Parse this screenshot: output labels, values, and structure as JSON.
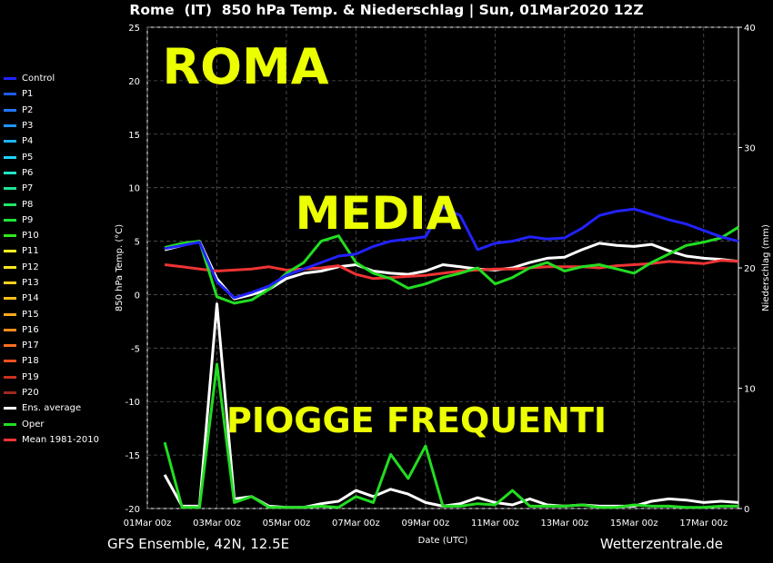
{
  "header": {
    "title": "Rome  (IT)  850 hPa Temp. & Niederschlag | Sun, 01Mar2020 12Z"
  },
  "footer": {
    "left": "GFS Ensemble, 42N, 12.5E",
    "right": "Wetterzentrale.de"
  },
  "overlay_text": [
    "ROMA",
    "MEDIA",
    "PIOGGE FREQUENTI"
  ],
  "colors": {
    "background": "#000000",
    "overlay": "#ecff00",
    "ens_average": "#ffffff",
    "oper": "#22dd22",
    "mean_clim": "#ee3333",
    "control": "#2222ff"
  },
  "legend": [
    {
      "label": "Control",
      "color": "#2222ff"
    },
    {
      "label": "P1",
      "color": "#1e5aff"
    },
    {
      "label": "P2",
      "color": "#1e78ff"
    },
    {
      "label": "P3",
      "color": "#1e96ff"
    },
    {
      "label": "P4",
      "color": "#1eb4ff"
    },
    {
      "label": "P5",
      "color": "#1ed2ff"
    },
    {
      "label": "P6",
      "color": "#1ee6c8"
    },
    {
      "label": "P7",
      "color": "#1ee696"
    },
    {
      "label": "P8",
      "color": "#1ee664"
    },
    {
      "label": "P9",
      "color": "#1ee632"
    },
    {
      "label": "P10",
      "color": "#32e61e"
    },
    {
      "label": "P11",
      "color": "#ffff1e"
    },
    {
      "label": "P12",
      "color": "#ffe61e"
    },
    {
      "label": "P13",
      "color": "#ffd21e"
    },
    {
      "label": "P14",
      "color": "#ffbe1e"
    },
    {
      "label": "P15",
      "color": "#ffaa1e"
    },
    {
      "label": "P16",
      "color": "#ff8c1e"
    },
    {
      "label": "P17",
      "color": "#ff6e1e"
    },
    {
      "label": "P18",
      "color": "#f0501e"
    },
    {
      "label": "P19",
      "color": "#c8321e"
    },
    {
      "label": "P20",
      "color": "#a0281e"
    },
    {
      "label": "Ens. average",
      "color": "#ffffff"
    },
    {
      "label": "Oper",
      "color": "#22dd22"
    },
    {
      "label": "Mean 1981-2010",
      "color": "#ee3333"
    }
  ],
  "chart_data": {
    "type": "line",
    "title": "Rome  (IT)  850 hPa Temp. & Niederschlag | Sun, 01Mar2020 12Z",
    "xlabel": "Date (UTC)",
    "ylabel": "850 hPa Temp. (°C)",
    "y2label": "Niederschlag (mm)",
    "x_ticks": [
      "01Mar 00z",
      "03Mar 00z",
      "05Mar 00z",
      "07Mar 00z",
      "09Mar 00z",
      "11Mar 00z",
      "13Mar 00z",
      "15Mar 00z",
      "17Mar 00z"
    ],
    "x_unit": "days since 01Mar 00z",
    "xlim": [
      0,
      17
    ],
    "ylim": [
      -20,
      25
    ],
    "yticks": [
      -20,
      -15,
      -10,
      -5,
      0,
      5,
      10,
      15,
      20,
      25
    ],
    "y2lim": [
      0,
      40
    ],
    "y2ticks": [
      0,
      10,
      20,
      30,
      40
    ],
    "grid": true,
    "legend_position": "left",
    "series": [
      {
        "name": "Ens. average",
        "axis": "temp",
        "color": "#ffffff",
        "width": 3,
        "x": [
          0.5,
          1,
          1.5,
          2,
          2.5,
          3,
          3.5,
          4,
          4.5,
          5,
          5.5,
          6,
          6.5,
          7,
          7.5,
          8,
          8.5,
          9,
          9.5,
          10,
          10.5,
          11,
          11.5,
          12,
          12.5,
          13,
          13.5,
          14,
          14.5,
          15,
          15.5,
          16,
          16.5,
          17
        ],
        "values": [
          4.2,
          4.6,
          5.0,
          1.5,
          -0.4,
          0.0,
          0.5,
          1.5,
          2.0,
          2.2,
          2.6,
          2.8,
          2.2,
          2.0,
          1.9,
          2.2,
          2.8,
          2.6,
          2.4,
          2.3,
          2.5,
          3.0,
          3.4,
          3.5,
          4.2,
          4.8,
          4.6,
          4.5,
          4.7,
          4.1,
          3.6,
          3.4,
          3.3,
          3.1
        ]
      },
      {
        "name": "Mean 1981-2010",
        "axis": "temp",
        "color": "#ee3333",
        "width": 3,
        "x": [
          0.5,
          1,
          1.5,
          2,
          2.5,
          3,
          3.5,
          4,
          4.5,
          5,
          5.5,
          6,
          6.5,
          7,
          7.5,
          8,
          8.5,
          9,
          9.5,
          10,
          10.5,
          11,
          11.5,
          12,
          12.5,
          13,
          13.5,
          14,
          14.5,
          15,
          15.5,
          16,
          16.5,
          17
        ],
        "values": [
          2.8,
          2.6,
          2.4,
          2.2,
          2.3,
          2.4,
          2.6,
          2.3,
          2.4,
          2.5,
          2.7,
          1.9,
          1.5,
          1.6,
          1.7,
          1.8,
          2.0,
          2.2,
          2.3,
          2.4,
          2.4,
          2.5,
          2.6,
          2.6,
          2.6,
          2.5,
          2.7,
          2.8,
          2.9,
          3.1,
          3.0,
          2.9,
          3.2,
          3.1
        ]
      },
      {
        "name": "Oper",
        "axis": "temp",
        "color": "#22dd22",
        "width": 3,
        "x": [
          0.5,
          1,
          1.5,
          2,
          2.5,
          3,
          3.5,
          4,
          4.5,
          5,
          5.5,
          6,
          6.5,
          7,
          7.5,
          8,
          8.5,
          9,
          9.5,
          10,
          10.5,
          11,
          11.5,
          12,
          12.5,
          13,
          13.5,
          14,
          14.5,
          15,
          15.5,
          16,
          16.5,
          17
        ],
        "values": [
          4.4,
          4.8,
          5.0,
          -0.2,
          -0.8,
          -0.5,
          0.5,
          2.0,
          3.0,
          5.0,
          5.5,
          3.0,
          2.0,
          1.5,
          0.6,
          1.0,
          1.6,
          2.0,
          2.5,
          1.0,
          1.6,
          2.5,
          3.0,
          2.2,
          2.6,
          2.8,
          2.4,
          2.0,
          3.0,
          3.8,
          4.6,
          4.9,
          5.3,
          6.3
        ]
      },
      {
        "name": "Control",
        "axis": "temp",
        "color": "#2222ff",
        "width": 3,
        "x": [
          0.5,
          1,
          1.5,
          2,
          2.5,
          3,
          3.5,
          4,
          4.5,
          5,
          5.5,
          6,
          6.5,
          7,
          7.5,
          8,
          8.5,
          9,
          9.5,
          10,
          10.5,
          11,
          11.5,
          12,
          12.5,
          13,
          13.5,
          14,
          14.5,
          15,
          15.5,
          16,
          16.5,
          17
        ],
        "values": [
          4.3,
          4.6,
          4.9,
          1.2,
          -0.3,
          0.2,
          0.8,
          1.8,
          2.4,
          3.0,
          3.6,
          3.8,
          4.5,
          5.0,
          5.2,
          5.4,
          8.2,
          7.4,
          4.2,
          4.8,
          5.0,
          5.4,
          5.2,
          5.3,
          6.2,
          7.4,
          7.8,
          8.0,
          7.5,
          7.0,
          6.6,
          6.0,
          5.4,
          5.0
        ]
      },
      {
        "name": "Ens. average",
        "axis": "precip",
        "color": "#ffffff",
        "width": 3,
        "x": [
          0.5,
          1,
          1.5,
          2,
          2.5,
          3,
          3.5,
          4,
          4.5,
          5,
          5.5,
          6,
          6.5,
          7,
          7.5,
          8,
          8.5,
          9,
          9.5,
          10,
          10.5,
          11,
          11.5,
          12,
          12.5,
          13,
          13.5,
          14,
          14.5,
          15,
          15.5,
          16,
          16.5,
          17
        ],
        "values": [
          2.8,
          0.2,
          0.2,
          17.0,
          0.8,
          1.0,
          0.2,
          0.1,
          0.1,
          0.4,
          0.6,
          1.5,
          1.0,
          1.6,
          1.2,
          0.5,
          0.2,
          0.4,
          0.9,
          0.5,
          0.3,
          0.8,
          0.3,
          0.2,
          0.3,
          0.2,
          0.2,
          0.2,
          0.6,
          0.8,
          0.7,
          0.5,
          0.6,
          0.5
        ]
      },
      {
        "name": "Oper",
        "axis": "precip",
        "color": "#22dd22",
        "width": 3,
        "x": [
          0.5,
          1,
          1.5,
          2,
          2.5,
          3,
          3.5,
          4,
          4.5,
          5,
          5.5,
          6,
          6.5,
          7,
          7.5,
          8,
          8.5,
          9,
          9.5,
          10,
          10.5,
          11,
          11.5,
          12,
          12.5,
          13,
          13.5,
          14,
          14.5,
          15,
          15.5,
          16,
          16.5,
          17
        ],
        "values": [
          5.5,
          0.1,
          0.1,
          12.0,
          0.5,
          1.0,
          0.1,
          0.1,
          0.1,
          0.2,
          0.1,
          1.0,
          0.5,
          4.5,
          2.5,
          5.2,
          0.2,
          0.2,
          0.4,
          0.3,
          1.5,
          0.2,
          0.2,
          0.2,
          0.3,
          0.1,
          0.1,
          0.3,
          0.2,
          0.2,
          0.1,
          0.1,
          0.2,
          0.2
        ]
      }
    ]
  }
}
